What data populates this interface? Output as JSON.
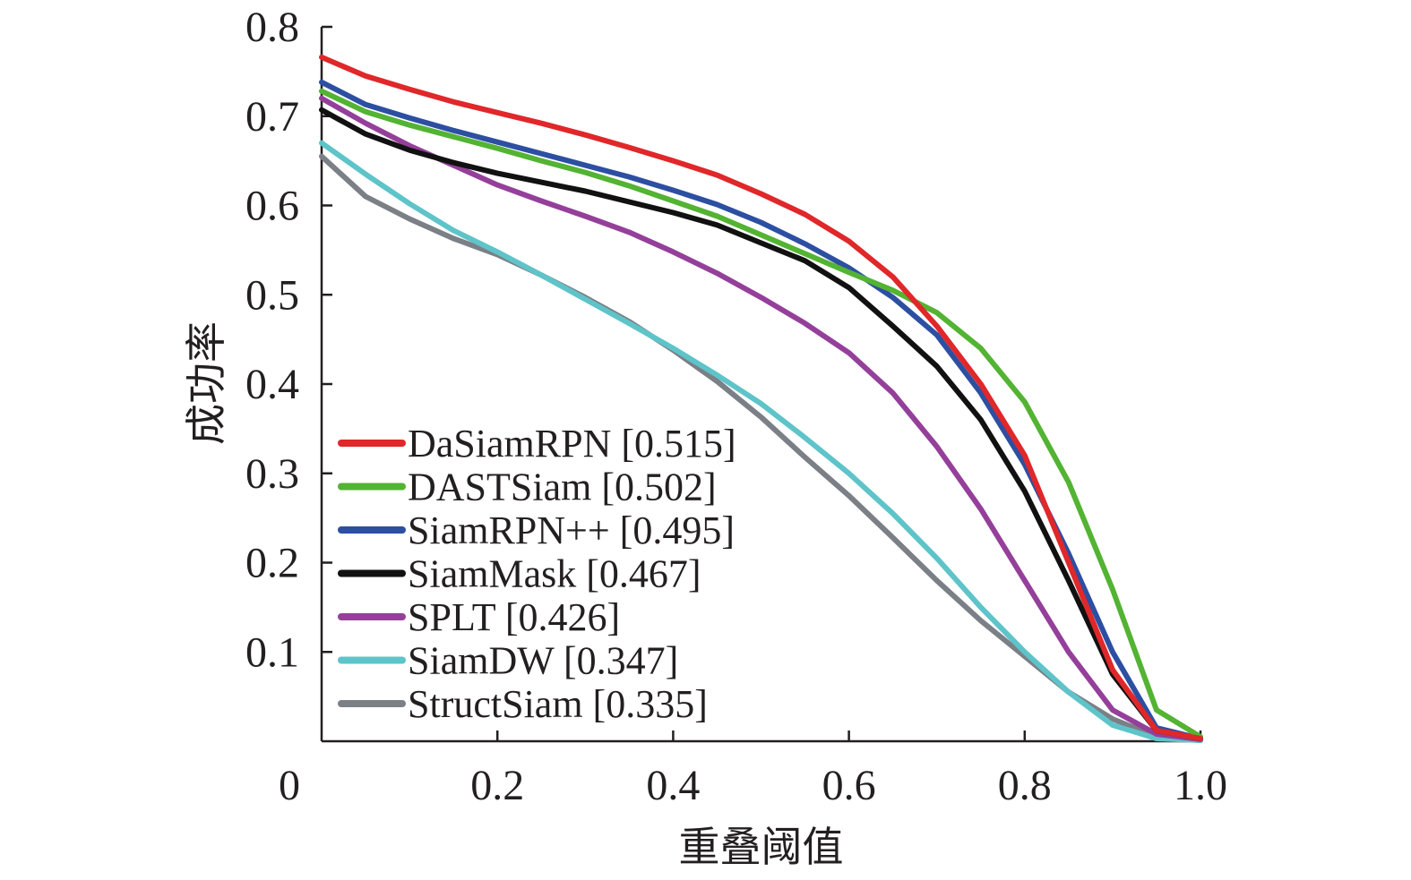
{
  "chart_data": {
    "type": "line",
    "title": "",
    "xlabel": "重叠阈值",
    "ylabel": "成功率",
    "xlim": [
      0,
      1.0
    ],
    "ylim": [
      0,
      0.8
    ],
    "x_ticks": [
      {
        "value": 0,
        "label": "0"
      },
      {
        "value": 0.2,
        "label": "0.2"
      },
      {
        "value": 0.4,
        "label": "0.4"
      },
      {
        "value": 0.6,
        "label": "0.6"
      },
      {
        "value": 0.8,
        "label": "0.8"
      },
      {
        "value": 1.0,
        "label": "1.0"
      }
    ],
    "y_ticks": [
      {
        "value": 0.1,
        "label": "0.1"
      },
      {
        "value": 0.2,
        "label": "0.2"
      },
      {
        "value": 0.3,
        "label": "0.3"
      },
      {
        "value": 0.4,
        "label": "0.4"
      },
      {
        "value": 0.5,
        "label": "0.5"
      },
      {
        "value": 0.6,
        "label": "0.6"
      },
      {
        "value": 0.7,
        "label": "0.7"
      },
      {
        "value": 0.8,
        "label": "0.8"
      }
    ],
    "grid": false,
    "legend_position": "bottom-left",
    "x": [
      0,
      0.05,
      0.1,
      0.15,
      0.2,
      0.25,
      0.3,
      0.35,
      0.4,
      0.45,
      0.5,
      0.55,
      0.6,
      0.65,
      0.7,
      0.75,
      0.8,
      0.85,
      0.9,
      0.95,
      1.0
    ],
    "series": [
      {
        "name": "DaSiamRPN [0.515]",
        "color": "#e0272a",
        "values": [
          0.766,
          0.745,
          0.73,
          0.716,
          0.704,
          0.692,
          0.679,
          0.665,
          0.65,
          0.634,
          0.613,
          0.59,
          0.56,
          0.52,
          0.465,
          0.4,
          0.32,
          0.2,
          0.08,
          0.012,
          0.003
        ]
      },
      {
        "name": "DASTSiam [0.502]",
        "color": "#53b333",
        "values": [
          0.728,
          0.705,
          0.69,
          0.677,
          0.664,
          0.65,
          0.637,
          0.622,
          0.605,
          0.588,
          0.567,
          0.546,
          0.525,
          0.505,
          0.48,
          0.44,
          0.38,
          0.29,
          0.17,
          0.035,
          0.005
        ]
      },
      {
        "name": "SiamRPN++ [0.495]",
        "color": "#2d4fa2",
        "values": [
          0.738,
          0.713,
          0.698,
          0.684,
          0.671,
          0.658,
          0.645,
          0.632,
          0.617,
          0.601,
          0.581,
          0.557,
          0.53,
          0.497,
          0.455,
          0.39,
          0.31,
          0.21,
          0.1,
          0.015,
          0.003
        ]
      },
      {
        "name": "SiamMask [0.467]",
        "color": "#111111",
        "values": [
          0.707,
          0.68,
          0.662,
          0.648,
          0.636,
          0.626,
          0.616,
          0.604,
          0.592,
          0.578,
          0.558,
          0.538,
          0.508,
          0.465,
          0.42,
          0.36,
          0.28,
          0.18,
          0.075,
          0.012,
          0.003
        ]
      },
      {
        "name": "SPLT [0.426]",
        "color": "#94409a",
        "values": [
          0.72,
          0.692,
          0.667,
          0.645,
          0.623,
          0.605,
          0.588,
          0.57,
          0.548,
          0.524,
          0.497,
          0.468,
          0.435,
          0.39,
          0.33,
          0.26,
          0.18,
          0.1,
          0.035,
          0.008,
          0.002
        ]
      },
      {
        "name": "SiamDW [0.347]",
        "color": "#5ec4c9",
        "values": [
          0.67,
          0.635,
          0.602,
          0.572,
          0.548,
          0.522,
          0.495,
          0.468,
          0.44,
          0.41,
          0.378,
          0.34,
          0.3,
          0.255,
          0.205,
          0.15,
          0.1,
          0.055,
          0.018,
          0.003,
          0.001
        ]
      },
      {
        "name": "StructSiam [0.335]",
        "color": "#7b7f86",
        "values": [
          0.655,
          0.61,
          0.585,
          0.563,
          0.545,
          0.522,
          0.497,
          0.47,
          0.438,
          0.403,
          0.363,
          0.318,
          0.275,
          0.228,
          0.18,
          0.135,
          0.095,
          0.055,
          0.025,
          0.005,
          0.001
        ]
      }
    ]
  }
}
